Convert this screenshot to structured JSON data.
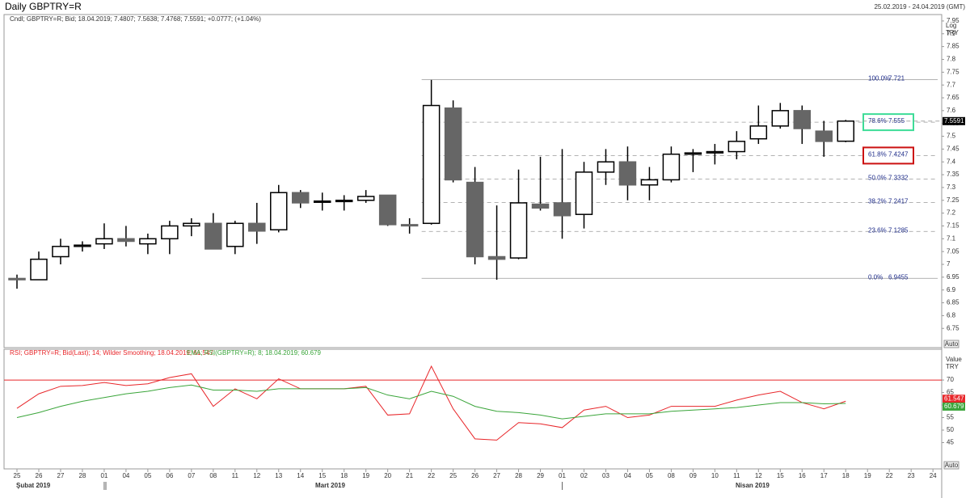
{
  "header": {
    "title": "Daily GBPTRY=R",
    "range": "25.02.2019 - 24.04.2019 (GMT)",
    "auto_button": "Auto"
  },
  "chart_data": [
    {
      "type": "candlestick",
      "legend": "Cndl; GBPTRY=R; Bid; 18.04.2019; 7.4807; 7.5638; 7.4768; 7.5591; +0.0777; (+1.04%)",
      "axis_labels": [
        "Log",
        "TRY"
      ],
      "categories": [
        "25",
        "26",
        "27",
        "28",
        "01",
        "04",
        "05",
        "06",
        "07",
        "08",
        "11",
        "12",
        "13",
        "14",
        "15",
        "18",
        "19",
        "20",
        "21",
        "22",
        "25",
        "26",
        "27",
        "28",
        "29",
        "01",
        "02",
        "03",
        "04",
        "05",
        "08",
        "09",
        "10",
        "11",
        "12",
        "15",
        "16",
        "17",
        "18",
        "19",
        "22",
        "23",
        "24"
      ],
      "months": [
        "Şubat 2019",
        "Mart 2019",
        "Nisan 2019"
      ],
      "open": [
        6.945,
        6.94,
        7.03,
        7.07,
        7.08,
        7.1,
        7.08,
        7.1,
        7.15,
        7.16,
        7.07,
        7.16,
        7.135,
        7.28,
        7.245,
        7.245,
        7.25,
        7.27,
        7.155,
        7.16,
        7.61,
        7.32,
        7.03,
        7.025,
        7.235,
        7.24,
        7.195,
        7.36,
        7.4,
        7.31,
        7.33,
        7.43,
        7.435,
        7.44,
        7.49,
        7.54,
        7.6,
        7.52,
        7.4807,
        null,
        null,
        null,
        null
      ],
      "high": [
        6.96,
        7.05,
        7.1,
        7.09,
        7.16,
        7.15,
        7.12,
        7.17,
        7.18,
        7.2,
        7.17,
        7.24,
        7.31,
        7.29,
        7.28,
        7.27,
        7.29,
        7.27,
        7.18,
        7.72,
        7.64,
        7.38,
        7.23,
        7.37,
        7.42,
        7.45,
        7.4,
        7.45,
        7.46,
        7.38,
        7.46,
        7.45,
        7.47,
        7.52,
        7.62,
        7.63,
        7.62,
        7.56,
        7.5638,
        null,
        null,
        null,
        null
      ],
      "low": [
        6.905,
        6.94,
        7.0,
        7.05,
        7.06,
        7.07,
        7.04,
        7.04,
        7.11,
        7.06,
        7.04,
        7.08,
        7.125,
        7.22,
        7.21,
        7.21,
        7.24,
        7.15,
        7.12,
        7.155,
        7.32,
        7.0,
        6.94,
        7.02,
        7.21,
        7.1,
        7.14,
        7.31,
        7.25,
        7.25,
        7.32,
        7.36,
        7.39,
        7.41,
        7.47,
        7.53,
        7.47,
        7.42,
        7.4768,
        null,
        null,
        null,
        null
      ],
      "close": [
        6.94,
        7.02,
        7.07,
        7.075,
        7.1,
        7.09,
        7.1,
        7.15,
        7.16,
        7.06,
        7.16,
        7.13,
        7.28,
        7.24,
        7.247,
        7.25,
        7.265,
        7.155,
        7.153,
        7.62,
        7.33,
        7.03,
        7.02,
        7.24,
        7.22,
        7.19,
        7.36,
        7.4,
        7.31,
        7.33,
        7.43,
        7.435,
        7.44,
        7.48,
        7.54,
        7.6,
        7.53,
        7.48,
        7.5591,
        null,
        null,
        null,
        null
      ],
      "up_color": "#ffffff",
      "down_color": "#666666",
      "ylim": [
        6.675,
        7.975
      ],
      "yticks": [
        6.75,
        6.8,
        6.85,
        6.9,
        6.95,
        7,
        7.05,
        7.1,
        7.15,
        7.2,
        7.25,
        7.3,
        7.35,
        7.4,
        7.45,
        7.5,
        7.55,
        7.6,
        7.65,
        7.7,
        7.75,
        7.8,
        7.85,
        7.9,
        7.95
      ],
      "fibonacci": [
        {
          "level": "100.0%",
          "price": 7.721
        },
        {
          "level": "78.6%",
          "price": 7.555,
          "box": "#3ddc97"
        },
        {
          "level": "61.8%",
          "price": 7.4247,
          "box": "#cc1111"
        },
        {
          "level": "50.0%",
          "price": 7.3332
        },
        {
          "level": "38.2%",
          "price": 7.2417
        },
        {
          "level": "23.6%",
          "price": 7.1285
        },
        {
          "level": "0.0%",
          "price": 6.9455
        }
      ]
    },
    {
      "type": "line",
      "axis_labels": [
        "Value",
        "TRY"
      ],
      "series": [
        {
          "name": "RSI; GBPTRY=R; Bid(Last); 14; Wilder Smoothing; 18.04.2019; 61.547;",
          "color": "#e8262a",
          "values": [
            58.7,
            64.5,
            67.5,
            67.8,
            69,
            67.8,
            68.5,
            71,
            72.5,
            59.5,
            66.5,
            62.5,
            70.5,
            66.5,
            66.5,
            66.5,
            67.5,
            56,
            56.5,
            75.5,
            58.5,
            46.5,
            46,
            53,
            52.5,
            51,
            58,
            59.5,
            55,
            56,
            59.5,
            59.5,
            59.5,
            62,
            64,
            65.5,
            61,
            58.5,
            61.547,
            null,
            null,
            null,
            null
          ]
        },
        {
          "name": "EMA; RSI(GBPTRY=R); 8; 18.04.2019; 60.679",
          "color": "#3aa53a",
          "values": [
            55,
            57,
            59.5,
            61.5,
            63,
            64.5,
            65.5,
            67,
            68,
            66,
            66,
            65.5,
            66.5,
            66.5,
            66.5,
            66.5,
            67,
            64,
            62.5,
            65.5,
            63.5,
            59.5,
            57.5,
            57,
            56,
            54.5,
            55.5,
            56.5,
            56.5,
            56.5,
            57.5,
            58,
            58.5,
            59,
            60,
            61,
            61,
            60.5,
            60.679,
            null,
            null,
            null,
            null
          ]
        }
      ],
      "reference_line": 70,
      "reference_color": "#e8262a",
      "ylim": [
        34.5,
        82.3
      ],
      "yticks": [
        45,
        50,
        55,
        60,
        65,
        70
      ]
    }
  ]
}
